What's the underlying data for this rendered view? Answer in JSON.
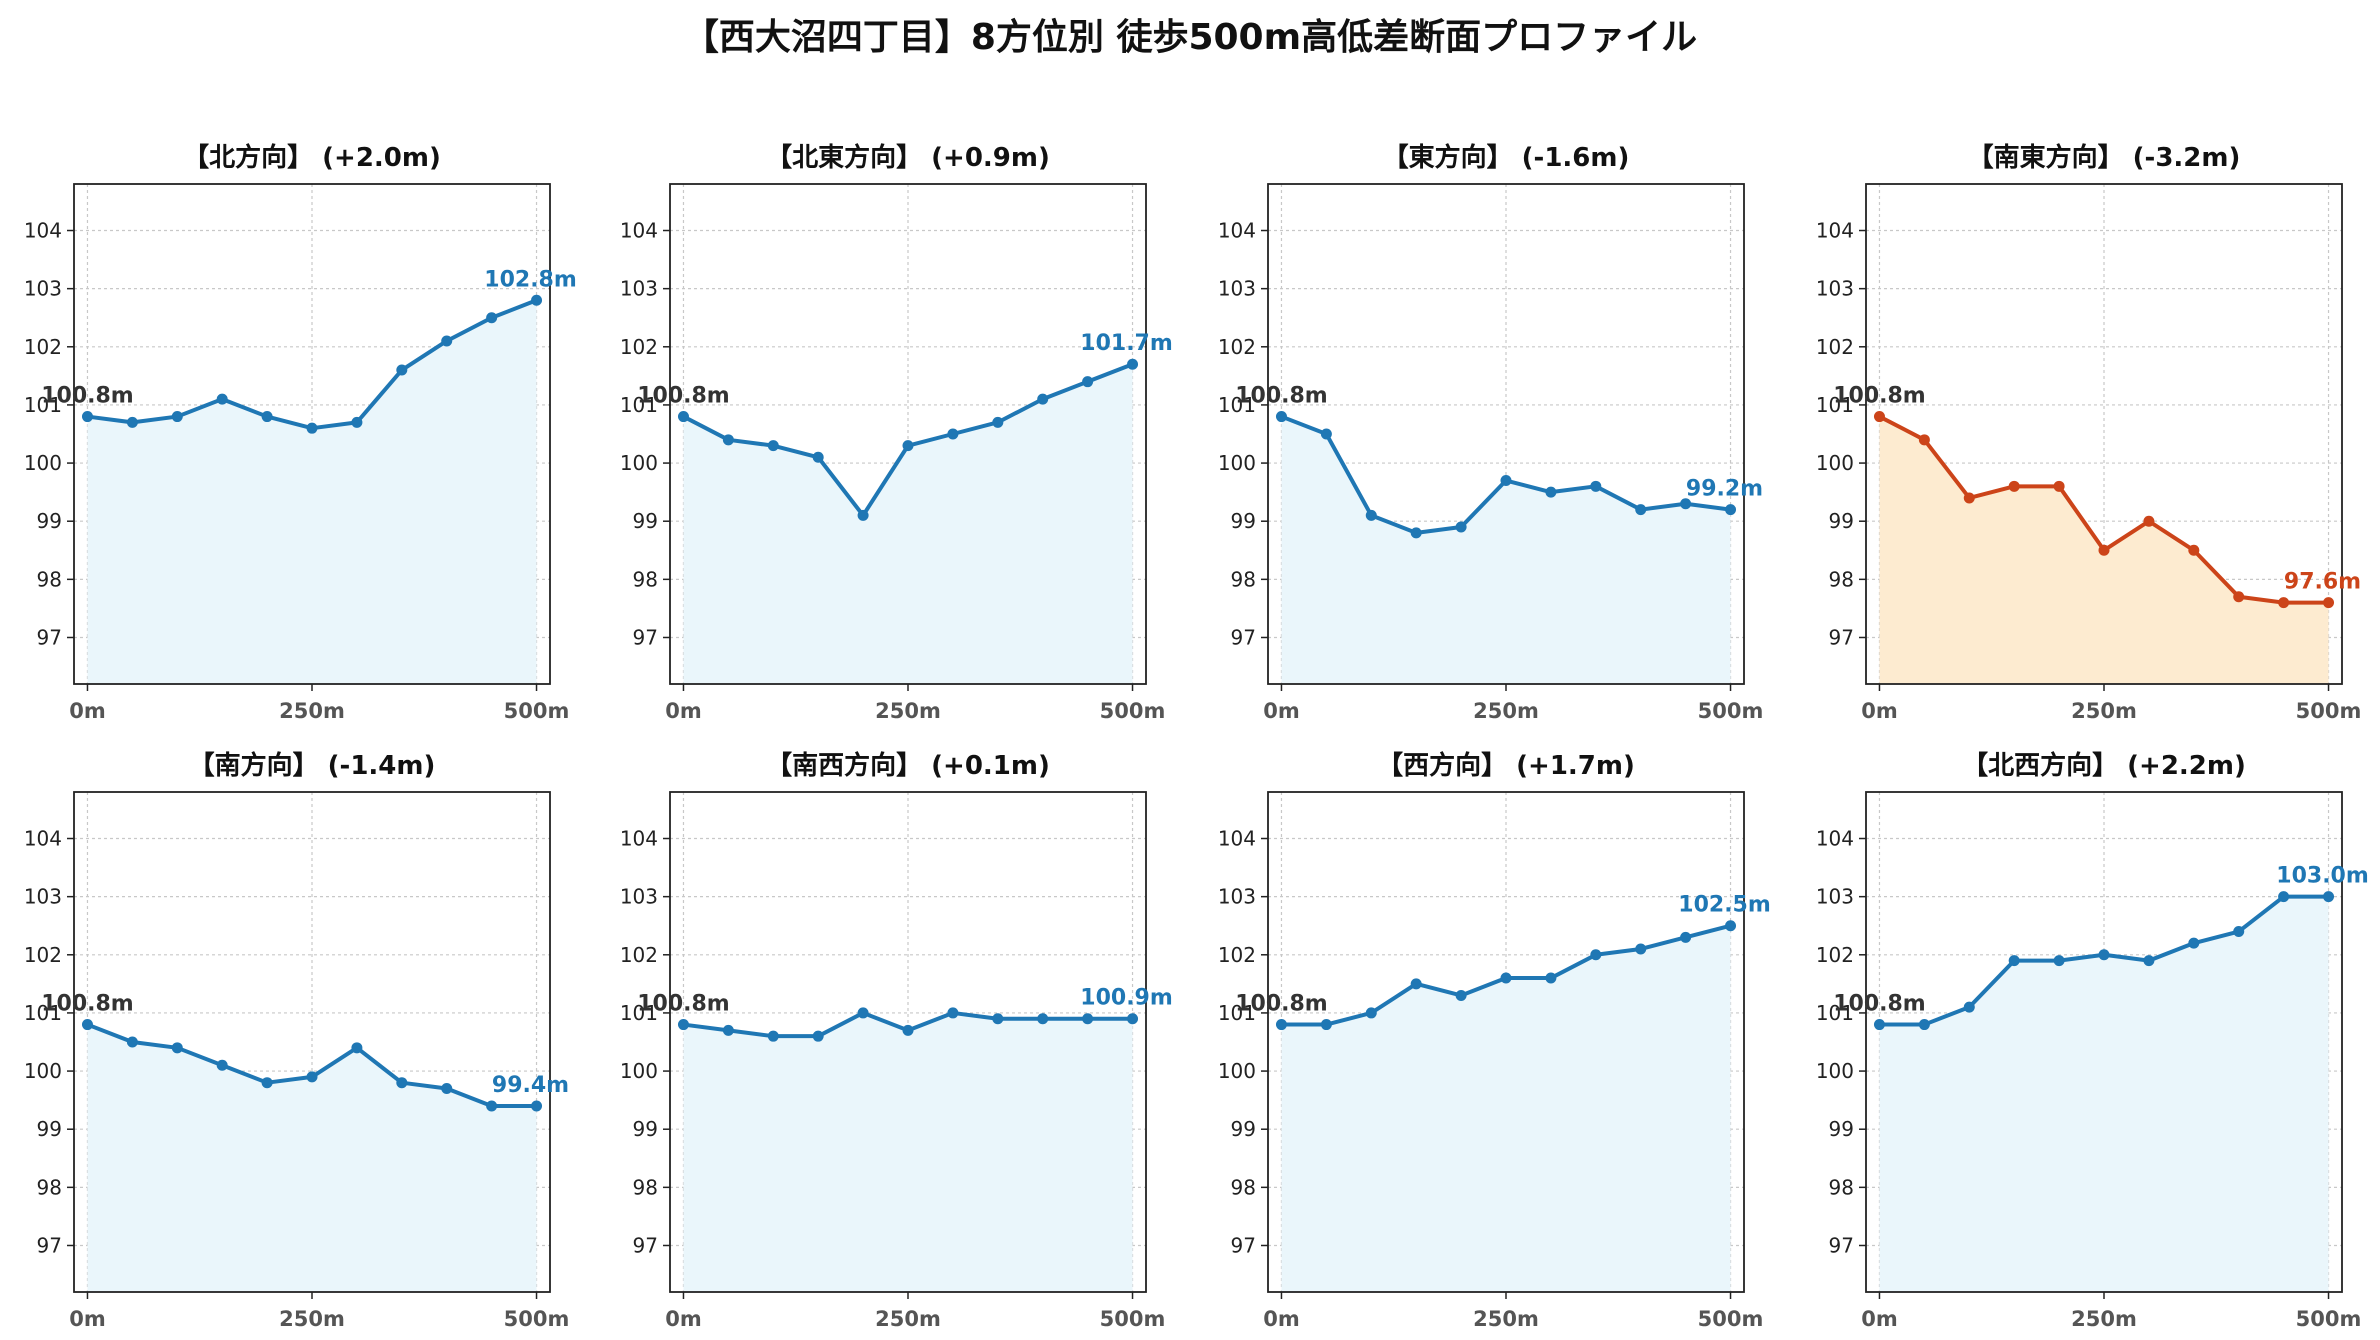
{
  "title": "【西大沼四丁目】8方位別 徒歩500m高低差断面プロファイル",
  "colors": {
    "line_default": "#1f77b4",
    "line_down": "#cc4419",
    "fill_default": "#eaf6fb",
    "fill_down": "#fdebd0",
    "start_label": "#333333"
  },
  "chart_data": [
    {
      "type": "line",
      "title": "【北方向】 (+2.0m)",
      "x": [
        0,
        50,
        100,
        150,
        200,
        250,
        300,
        350,
        400,
        450,
        500
      ],
      "values": [
        100.8,
        100.7,
        100.8,
        101.1,
        100.8,
        100.6,
        100.7,
        101.6,
        102.1,
        102.5,
        102.8
      ],
      "start_label": "100.8m",
      "end_label": "102.8m",
      "highlight": false,
      "xticks": [
        "0m",
        "250m",
        "500m"
      ],
      "yticks": [
        "97",
        "98",
        "99",
        "100",
        "101",
        "102",
        "103",
        "104"
      ],
      "xlim": [
        -15,
        515
      ],
      "ylim": [
        96.2,
        104.8
      ],
      "grid": true
    },
    {
      "type": "line",
      "title": "【北東方向】 (+0.9m)",
      "x": [
        0,
        50,
        100,
        150,
        200,
        250,
        300,
        350,
        400,
        450,
        500
      ],
      "values": [
        100.8,
        100.4,
        100.3,
        100.1,
        99.1,
        100.3,
        100.5,
        100.7,
        101.1,
        101.4,
        101.7
      ],
      "start_label": "100.8m",
      "end_label": "101.7m",
      "highlight": false,
      "xticks": [
        "0m",
        "250m",
        "500m"
      ],
      "yticks": [
        "97",
        "98",
        "99",
        "100",
        "101",
        "102",
        "103",
        "104"
      ],
      "xlim": [
        -15,
        515
      ],
      "ylim": [
        96.2,
        104.8
      ],
      "grid": true
    },
    {
      "type": "line",
      "title": "【東方向】 (-1.6m)",
      "x": [
        0,
        50,
        100,
        150,
        200,
        250,
        300,
        350,
        400,
        450,
        500
      ],
      "values": [
        100.8,
        100.5,
        99.1,
        98.8,
        98.9,
        99.7,
        99.5,
        99.6,
        99.2,
        99.3,
        99.2
      ],
      "start_label": "100.8m",
      "end_label": "99.2m",
      "highlight": false,
      "xticks": [
        "0m",
        "250m",
        "500m"
      ],
      "yticks": [
        "97",
        "98",
        "99",
        "100",
        "101",
        "102",
        "103",
        "104"
      ],
      "xlim": [
        -15,
        515
      ],
      "ylim": [
        96.2,
        104.8
      ],
      "grid": true
    },
    {
      "type": "line",
      "title": "【南東方向】 (-3.2m)",
      "x": [
        0,
        50,
        100,
        150,
        200,
        250,
        300,
        350,
        400,
        450,
        500
      ],
      "values": [
        100.8,
        100.4,
        99.4,
        99.6,
        99.6,
        98.5,
        99.0,
        98.5,
        97.7,
        97.6,
        97.6
      ],
      "start_label": "100.8m",
      "end_label": "97.6m",
      "highlight": true,
      "xticks": [
        "0m",
        "250m",
        "500m"
      ],
      "yticks": [
        "97",
        "98",
        "99",
        "100",
        "101",
        "102",
        "103",
        "104"
      ],
      "xlim": [
        -15,
        515
      ],
      "ylim": [
        96.2,
        104.8
      ],
      "grid": true
    },
    {
      "type": "line",
      "title": "【南方向】 (-1.4m)",
      "x": [
        0,
        50,
        100,
        150,
        200,
        250,
        300,
        350,
        400,
        450,
        500
      ],
      "values": [
        100.8,
        100.5,
        100.4,
        100.1,
        99.8,
        99.9,
        100.4,
        99.8,
        99.7,
        99.4,
        99.4
      ],
      "start_label": "100.8m",
      "end_label": "99.4m",
      "highlight": false,
      "xticks": [
        "0m",
        "250m",
        "500m"
      ],
      "yticks": [
        "97",
        "98",
        "99",
        "100",
        "101",
        "102",
        "103",
        "104"
      ],
      "xlim": [
        -15,
        515
      ],
      "ylim": [
        96.2,
        104.8
      ],
      "grid": true
    },
    {
      "type": "line",
      "title": "【南西方向】 (+0.1m)",
      "x": [
        0,
        50,
        100,
        150,
        200,
        250,
        300,
        350,
        400,
        450,
        500
      ],
      "values": [
        100.8,
        100.7,
        100.6,
        100.6,
        101.0,
        100.7,
        101.0,
        100.9,
        100.9,
        100.9,
        100.9
      ],
      "start_label": "100.8m",
      "end_label": "100.9m",
      "highlight": false,
      "xticks": [
        "0m",
        "250m",
        "500m"
      ],
      "yticks": [
        "97",
        "98",
        "99",
        "100",
        "101",
        "102",
        "103",
        "104"
      ],
      "xlim": [
        -15,
        515
      ],
      "ylim": [
        96.2,
        104.8
      ],
      "grid": true
    },
    {
      "type": "line",
      "title": "【西方向】 (+1.7m)",
      "x": [
        0,
        50,
        100,
        150,
        200,
        250,
        300,
        350,
        400,
        450,
        500
      ],
      "values": [
        100.8,
        100.8,
        101.0,
        101.5,
        101.3,
        101.6,
        101.6,
        102.0,
        102.1,
        102.3,
        102.5
      ],
      "start_label": "100.8m",
      "end_label": "102.5m",
      "highlight": false,
      "xticks": [
        "0m",
        "250m",
        "500m"
      ],
      "yticks": [
        "97",
        "98",
        "99",
        "100",
        "101",
        "102",
        "103",
        "104"
      ],
      "xlim": [
        -15,
        515
      ],
      "ylim": [
        96.2,
        104.8
      ],
      "grid": true
    },
    {
      "type": "line",
      "title": "【北西方向】 (+2.2m)",
      "x": [
        0,
        50,
        100,
        150,
        200,
        250,
        300,
        350,
        400,
        450,
        500
      ],
      "values": [
        100.8,
        100.8,
        101.1,
        101.9,
        101.9,
        102.0,
        101.9,
        102.2,
        102.4,
        103.0,
        103.0
      ],
      "start_label": "100.8m",
      "end_label": "103.0m",
      "highlight": false,
      "xticks": [
        "0m",
        "250m",
        "500m"
      ],
      "yticks": [
        "97",
        "98",
        "99",
        "100",
        "101",
        "102",
        "103",
        "104"
      ],
      "xlim": [
        -15,
        515
      ],
      "ylim": [
        96.2,
        104.8
      ],
      "grid": true
    }
  ]
}
